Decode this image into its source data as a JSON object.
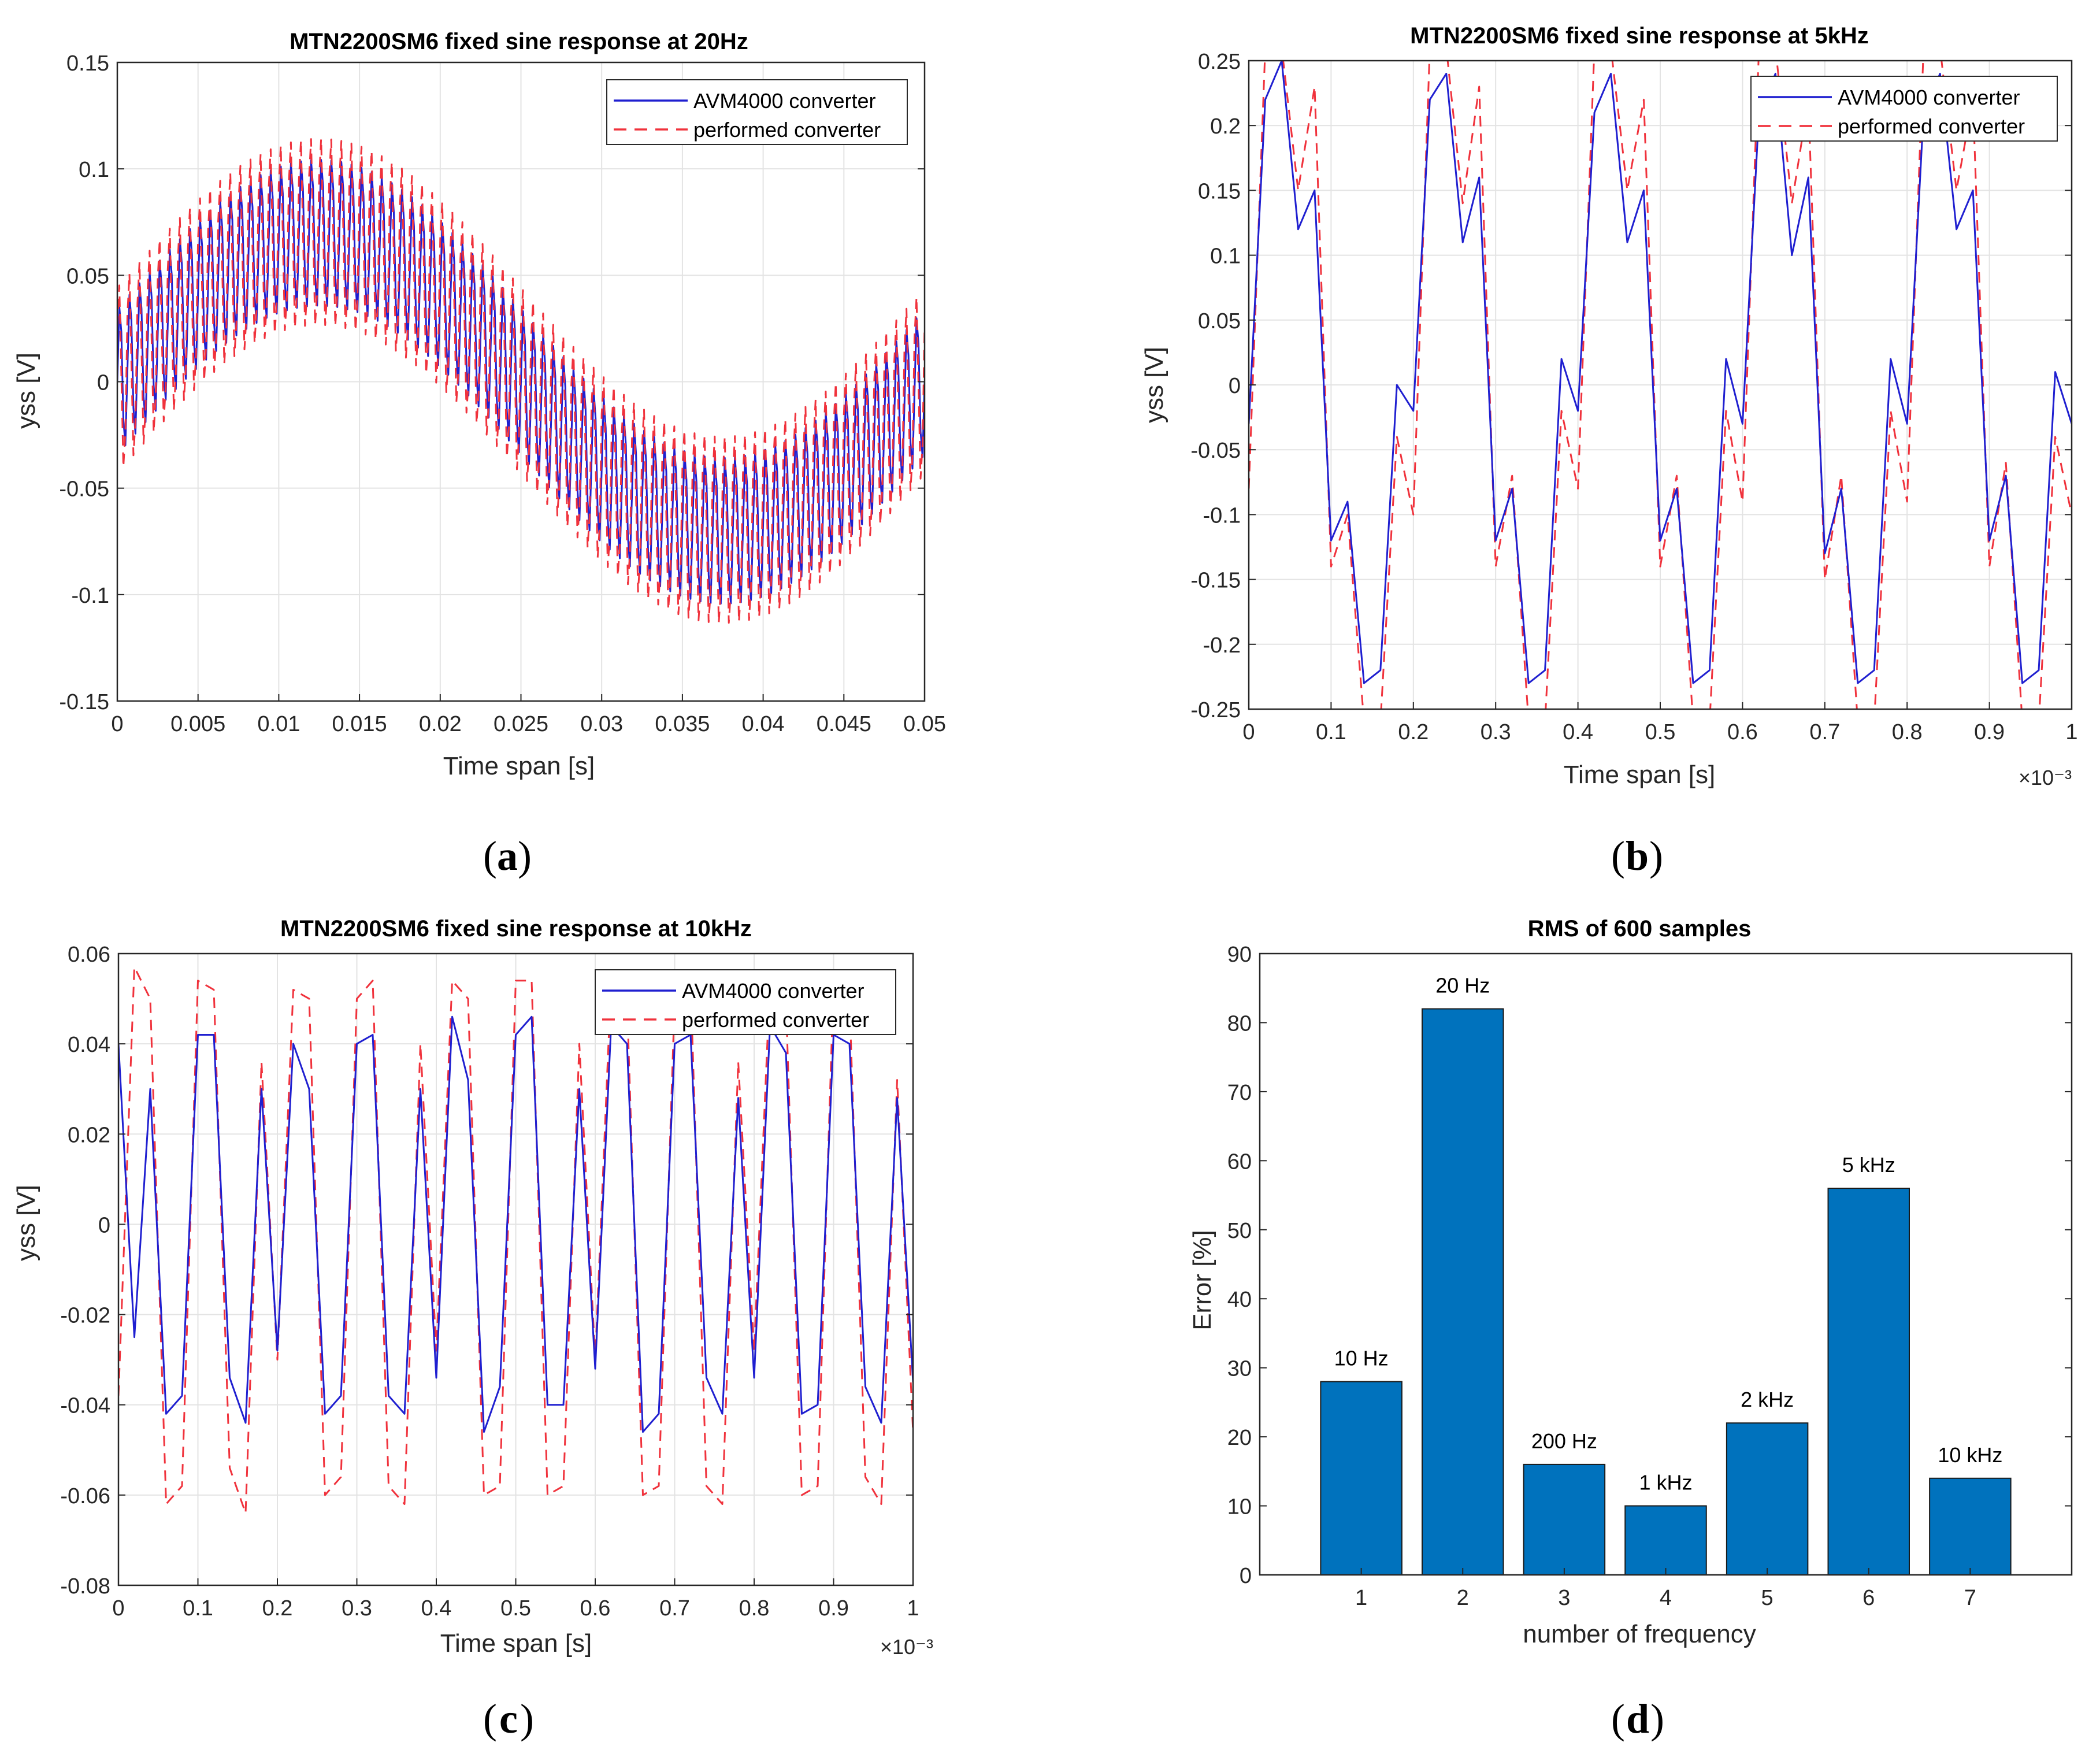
{
  "legend_labels": [
    "AVM4000 converter",
    "performed converter"
  ],
  "colors": {
    "avm": "#1f1fd0",
    "perf": "#f0323c",
    "bar": "#0072bd",
    "grid": "#e3e3e3",
    "axis": "#262626"
  },
  "chart_data": [
    {
      "type": "line",
      "id": "a",
      "caption": "a",
      "title": "MTN2200SM6 fixed sine response at 20Hz",
      "xlabel": "Time span [s]",
      "ylabel": "yss [V]",
      "xlim": [
        0,
        0.05
      ],
      "ylim": [
        -0.15,
        0.15
      ],
      "xticks": [
        0,
        0.005,
        0.01,
        0.015,
        0.02,
        0.025,
        0.03,
        0.035,
        0.04,
        0.045,
        0.05
      ],
      "yticks": [
        -0.15,
        -0.1,
        -0.05,
        0,
        0.05,
        0.1,
        0.15
      ],
      "exponent": "",
      "legend_position": "top-right",
      "grid": true,
      "signal": {
        "base_amplitude": 0.07,
        "base_frequency_hz": 20,
        "ripple_amplitude": 0.04,
        "ripple_cycles": 80,
        "samples": 400
      },
      "series": [
        {
          "name": "AVM4000 converter",
          "style": "solid"
        },
        {
          "name": "performed converter",
          "style": "dashed"
        }
      ]
    },
    {
      "type": "line",
      "id": "b",
      "caption": "b",
      "title": "MTN2200SM6 fixed sine response at 5kHz",
      "xlabel": "Time span [s]",
      "ylabel": "yss [V]",
      "xlim": [
        0,
        1
      ],
      "ylim": [
        -0.25,
        0.25
      ],
      "xticks": [
        0,
        0.1,
        0.2,
        0.3,
        0.4,
        0.5,
        0.6,
        0.7,
        0.8,
        0.9,
        1
      ],
      "yticks": [
        -0.25,
        -0.2,
        -0.15,
        -0.1,
        -0.05,
        0,
        0.05,
        0.1,
        0.15,
        0.2,
        0.25
      ],
      "exponent": "×10⁻³",
      "legend_position": "top-right",
      "grid": true,
      "series": [
        {
          "name": "AVM4000 converter",
          "style": "solid",
          "x": [
            0,
            0.02,
            0.04,
            0.06,
            0.08,
            0.1,
            0.12,
            0.14,
            0.16,
            0.18,
            0.2,
            0.22,
            0.24,
            0.26,
            0.28,
            0.3,
            0.32,
            0.34,
            0.36,
            0.38,
            0.4,
            0.42,
            0.44,
            0.46,
            0.48,
            0.5,
            0.52,
            0.54,
            0.56,
            0.58,
            0.6,
            0.62,
            0.64,
            0.66,
            0.68,
            0.7,
            0.72,
            0.74,
            0.76,
            0.78,
            0.8,
            0.82,
            0.84,
            0.86,
            0.88,
            0.9,
            0.92,
            0.94,
            0.96,
            0.98,
            1
          ],
          "y": [
            -0.03,
            0.22,
            0.25,
            0.12,
            0.15,
            -0.12,
            -0.09,
            -0.23,
            -0.22,
            0.0,
            -0.02,
            0.22,
            0.24,
            0.11,
            0.16,
            -0.12,
            -0.08,
            -0.23,
            -0.22,
            0.02,
            -0.02,
            0.21,
            0.24,
            0.11,
            0.15,
            -0.12,
            -0.08,
            -0.23,
            -0.22,
            0.02,
            -0.03,
            0.21,
            0.24,
            0.1,
            0.16,
            -0.13,
            -0.08,
            -0.23,
            -0.22,
            0.02,
            -0.03,
            0.21,
            0.24,
            0.12,
            0.15,
            -0.12,
            -0.07,
            -0.23,
            -0.22,
            0.01,
            -0.03
          ]
        },
        {
          "name": "performed converter",
          "style": "dashed",
          "x": [
            0,
            0.02,
            0.04,
            0.06,
            0.08,
            0.1,
            0.12,
            0.14,
            0.16,
            0.18,
            0.2,
            0.22,
            0.24,
            0.26,
            0.28,
            0.3,
            0.32,
            0.34,
            0.36,
            0.38,
            0.4,
            0.42,
            0.44,
            0.46,
            0.48,
            0.5,
            0.52,
            0.54,
            0.56,
            0.58,
            0.6,
            0.62,
            0.64,
            0.66,
            0.68,
            0.7,
            0.72,
            0.74,
            0.76,
            0.78,
            0.8,
            0.82,
            0.84,
            0.86,
            0.88,
            0.9,
            0.92,
            0.94,
            0.96,
            0.98,
            1
          ],
          "y": [
            -0.08,
            0.26,
            0.26,
            0.15,
            0.23,
            -0.14,
            -0.1,
            -0.26,
            -0.26,
            -0.04,
            -0.1,
            0.26,
            0.26,
            0.14,
            0.23,
            -0.14,
            -0.07,
            -0.26,
            -0.26,
            -0.02,
            -0.08,
            0.26,
            0.26,
            0.15,
            0.22,
            -0.14,
            -0.07,
            -0.26,
            -0.26,
            -0.02,
            -0.09,
            0.26,
            0.26,
            0.14,
            0.22,
            -0.15,
            -0.07,
            -0.26,
            -0.26,
            -0.02,
            -0.09,
            0.26,
            0.26,
            0.15,
            0.22,
            -0.14,
            -0.06,
            -0.26,
            -0.26,
            -0.04,
            -0.1
          ]
        }
      ]
    },
    {
      "type": "line",
      "id": "c",
      "caption": "c",
      "title": "MTN2200SM6 fixed sine response at 10kHz",
      "xlabel": "Time span [s]",
      "ylabel": "yss [V]",
      "xlim": [
        0,
        1
      ],
      "ylim": [
        -0.08,
        0.06
      ],
      "xticks": [
        0,
        0.1,
        0.2,
        0.3,
        0.4,
        0.5,
        0.6,
        0.7,
        0.8,
        0.9,
        1
      ],
      "yticks": [
        -0.08,
        -0.06,
        -0.04,
        -0.02,
        0,
        0.02,
        0.04,
        0.06
      ],
      "exponent": "×10⁻³",
      "legend_position": "top-right",
      "grid": true,
      "series": [
        {
          "name": "AVM4000 converter",
          "style": "solid",
          "x": [
            0,
            0.02,
            0.04,
            0.06,
            0.08,
            0.1,
            0.12,
            0.14,
            0.16,
            0.18,
            0.2,
            0.22,
            0.24,
            0.26,
            0.28,
            0.3,
            0.32,
            0.34,
            0.36,
            0.38,
            0.4,
            0.42,
            0.44,
            0.46,
            0.48,
            0.5,
            0.52,
            0.54,
            0.56,
            0.58,
            0.6,
            0.62,
            0.64,
            0.66,
            0.68,
            0.7,
            0.72,
            0.74,
            0.76,
            0.78,
            0.8,
            0.82,
            0.84,
            0.86,
            0.88,
            0.9,
            0.92,
            0.94,
            0.96,
            0.98,
            1
          ],
          "y": [
            0.04,
            -0.025,
            0.03,
            -0.042,
            -0.038,
            0.042,
            0.042,
            -0.034,
            -0.044,
            0.03,
            -0.028,
            0.04,
            0.03,
            -0.042,
            -0.038,
            0.04,
            0.042,
            -0.038,
            -0.042,
            0.03,
            -0.034,
            0.046,
            0.032,
            -0.046,
            -0.036,
            0.042,
            0.046,
            -0.04,
            -0.04,
            0.03,
            -0.032,
            0.044,
            0.04,
            -0.046,
            -0.042,
            0.04,
            0.042,
            -0.034,
            -0.042,
            0.028,
            -0.034,
            0.044,
            0.038,
            -0.042,
            -0.04,
            0.042,
            0.04,
            -0.036,
            -0.044,
            0.028,
            -0.035
          ]
        },
        {
          "name": "performed converter",
          "style": "dashed",
          "x": [
            0,
            0.02,
            0.04,
            0.06,
            0.08,
            0.1,
            0.12,
            0.14,
            0.16,
            0.18,
            0.2,
            0.22,
            0.24,
            0.26,
            0.28,
            0.3,
            0.32,
            0.34,
            0.36,
            0.38,
            0.4,
            0.42,
            0.44,
            0.46,
            0.48,
            0.5,
            0.52,
            0.54,
            0.56,
            0.58,
            0.6,
            0.62,
            0.64,
            0.66,
            0.68,
            0.7,
            0.72,
            0.74,
            0.76,
            0.78,
            0.8,
            0.82,
            0.84,
            0.86,
            0.88,
            0.9,
            0.92,
            0.94,
            0.96,
            0.98,
            1
          ],
          "y": [
            -0.038,
            0.057,
            0.05,
            -0.062,
            -0.058,
            0.054,
            0.052,
            -0.054,
            -0.064,
            0.036,
            -0.03,
            0.052,
            0.05,
            -0.06,
            -0.056,
            0.05,
            0.054,
            -0.058,
            -0.062,
            0.04,
            -0.028,
            0.054,
            0.05,
            -0.06,
            -0.058,
            0.054,
            0.054,
            -0.06,
            -0.058,
            0.04,
            -0.03,
            0.054,
            0.05,
            -0.06,
            -0.058,
            0.05,
            0.054,
            -0.058,
            -0.062,
            0.036,
            -0.028,
            0.054,
            0.05,
            -0.06,
            -0.058,
            0.054,
            0.05,
            -0.056,
            -0.062,
            0.032,
            -0.046
          ]
        }
      ]
    },
    {
      "type": "bar",
      "id": "d",
      "caption": "d",
      "title": "RMS of 600 samples",
      "xlabel": "number of frequency",
      "ylabel": "Error [%]",
      "categories": [
        "1",
        "2",
        "3",
        "4",
        "5",
        "6",
        "7"
      ],
      "values": [
        28,
        82,
        16,
        10,
        22,
        56,
        14
      ],
      "bar_labels": [
        "10 Hz",
        "20 Hz",
        "200 Hz",
        "1 kHz",
        "2 kHz",
        "5 kHz",
        "10 kHz"
      ],
      "xlim": [
        0,
        8
      ],
      "ylim": [
        0,
        90
      ],
      "yticks": [
        0,
        10,
        20,
        30,
        40,
        50,
        60,
        70,
        80,
        90
      ],
      "grid": false
    }
  ]
}
